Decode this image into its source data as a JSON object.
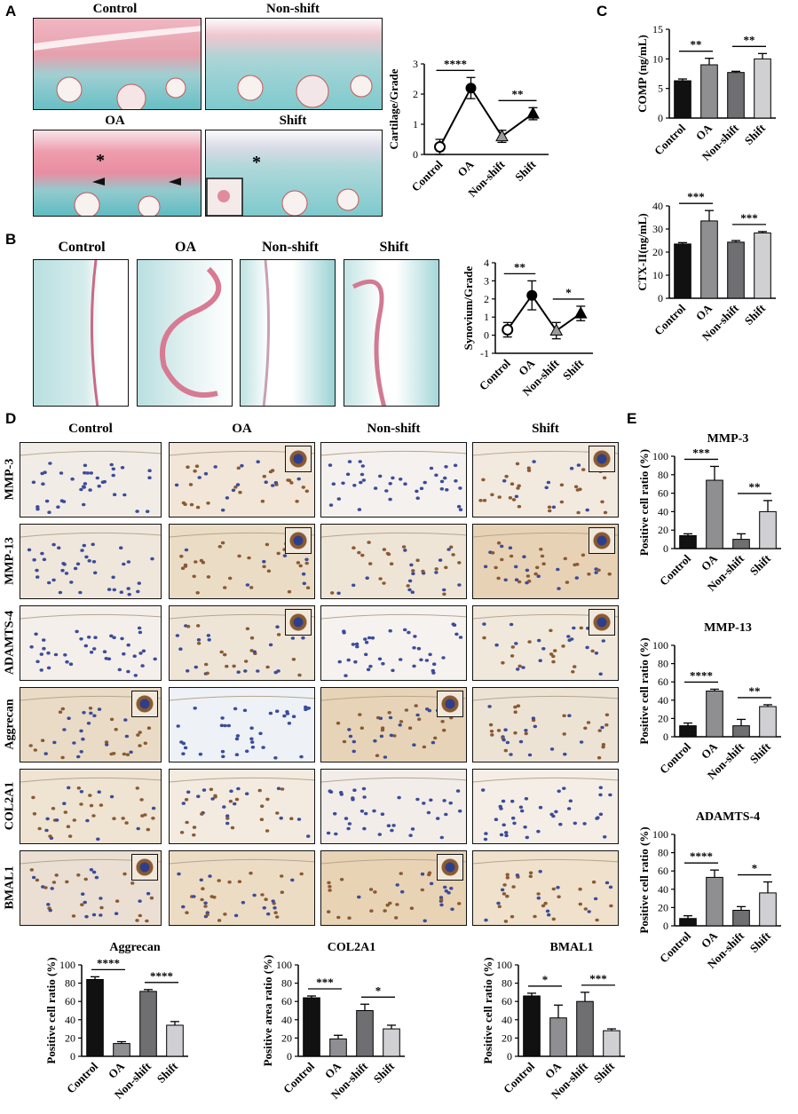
{
  "panel_letters": {
    "A": "A",
    "B": "B",
    "C": "C",
    "D": "D",
    "E": "E"
  },
  "panel_a": {
    "labels": [
      "Control",
      "Non-shift",
      "OA",
      "Shift"
    ],
    "star": "*"
  },
  "panel_b": {
    "labels": [
      "Control",
      "OA",
      "Non-shift",
      "Shift"
    ]
  },
  "panel_d": {
    "col_labels": [
      "Control",
      "OA",
      "Non-shift",
      "Shift"
    ],
    "row_labels": [
      "MMP-3",
      "MMP-13",
      "ADAMTS-4",
      "Aggrecan",
      "COL2A1",
      "BMAL1"
    ]
  },
  "colors": {
    "safranin_red": "#e79aa8",
    "fast_green": "#6fc3c6",
    "ihc_bg": "#f3ece3",
    "ihc_brown": "#a06a3c",
    "hema_blue": "#3a4fa0",
    "bar_black": "#111111",
    "bar_gray1": "#8f8f92",
    "bar_gray2": "#6f6f72",
    "bar_gray3": "#d0d0d2"
  },
  "chart_data": [
    {
      "id": "A-cartilage",
      "type": "line",
      "ylabel": "Cartilage/Grade",
      "categories": [
        "Control",
        "OA",
        "Non-shift",
        "Shift"
      ],
      "values": [
        0.25,
        2.2,
        0.6,
        1.35
      ],
      "errors": [
        0.25,
        0.35,
        0.2,
        0.2
      ],
      "markers": [
        "circle-open",
        "circle",
        "triangle-gray",
        "triangle"
      ],
      "ylim": [
        0,
        3
      ],
      "yticks": [
        0,
        1,
        2,
        3
      ],
      "significance": [
        {
          "from": 0,
          "to": 1,
          "label": "****"
        },
        {
          "from": 2,
          "to": 3,
          "label": "**"
        }
      ]
    },
    {
      "id": "B-synovium",
      "type": "line",
      "ylabel": "Synovium/Grade",
      "categories": [
        "Control",
        "OA",
        "Non-shift",
        "Shift"
      ],
      "values": [
        0.3,
        2.2,
        0.25,
        1.2
      ],
      "errors": [
        0.4,
        0.8,
        0.45,
        0.4
      ],
      "markers": [
        "circle-open",
        "circle",
        "triangle-gray",
        "triangle"
      ],
      "ylim": [
        -1,
        4
      ],
      "yticks": [
        -1,
        0,
        1,
        2,
        3,
        4
      ],
      "significance": [
        {
          "from": 0,
          "to": 1,
          "label": "**"
        },
        {
          "from": 2,
          "to": 3,
          "label": "*"
        }
      ]
    },
    {
      "id": "C-comp",
      "type": "bar",
      "ylabel": "COMP (ng/mL)",
      "categories": [
        "Control",
        "OA",
        "Non-shift",
        "Shift"
      ],
      "values": [
        6.3,
        9.0,
        7.7,
        10.0
      ],
      "errors": [
        0.3,
        1.1,
        0.2,
        0.9
      ],
      "ylim": [
        0,
        15
      ],
      "yticks": [
        0,
        5,
        10,
        15
      ],
      "significance": [
        {
          "from": 0,
          "to": 1,
          "label": "**"
        },
        {
          "from": 2,
          "to": 3,
          "label": "**"
        }
      ]
    },
    {
      "id": "C-ctx",
      "type": "bar",
      "ylabel": "CTX-II(ng/mL)",
      "categories": [
        "Control",
        "OA",
        "Non-shift",
        "Shift"
      ],
      "values": [
        23.5,
        33.5,
        24.3,
        28.3
      ],
      "errors": [
        0.6,
        4.5,
        0.7,
        0.6
      ],
      "ylim": [
        0,
        40
      ],
      "yticks": [
        0,
        10,
        20,
        30,
        40
      ],
      "significance": [
        {
          "from": 0,
          "to": 1,
          "label": "***"
        },
        {
          "from": 2,
          "to": 3,
          "label": "***"
        }
      ]
    },
    {
      "id": "E-mmp3",
      "type": "bar",
      "title": "MMP-3",
      "ylabel": "Positive cell ratio (%)",
      "categories": [
        "Control",
        "OA",
        "Non-shift",
        "Shift"
      ],
      "values": [
        14,
        74,
        10,
        40
      ],
      "errors": [
        2,
        15,
        6,
        12
      ],
      "ylim": [
        0,
        100
      ],
      "yticks": [
        0,
        20,
        40,
        60,
        80,
        100
      ],
      "significance": [
        {
          "from": 0,
          "to": 1,
          "label": "***"
        },
        {
          "from": 2,
          "to": 3,
          "label": "**"
        }
      ]
    },
    {
      "id": "E-mmp13",
      "type": "bar",
      "title": "MMP-13",
      "ylabel": "Positive cell ratio (%)",
      "categories": [
        "Control",
        "OA",
        "Non-shift",
        "Shift"
      ],
      "values": [
        12,
        50,
        12,
        33
      ],
      "errors": [
        3,
        2,
        7,
        2
      ],
      "ylim": [
        0,
        100
      ],
      "yticks": [
        0,
        20,
        40,
        60,
        80,
        100
      ],
      "significance": [
        {
          "from": 0,
          "to": 1,
          "label": "****"
        },
        {
          "from": 2,
          "to": 3,
          "label": "**"
        }
      ]
    },
    {
      "id": "E-adamts4",
      "type": "bar",
      "title": "ADAMTS-4",
      "ylabel": "Positive cell ratio (%)",
      "categories": [
        "Control",
        "OA",
        "Non-shift",
        "Shift"
      ],
      "values": [
        8,
        53,
        17,
        36
      ],
      "errors": [
        3,
        8,
        4,
        12
      ],
      "ylim": [
        0,
        100
      ],
      "yticks": [
        0,
        20,
        40,
        60,
        80,
        100
      ],
      "significance": [
        {
          "from": 0,
          "to": 1,
          "label": "****"
        },
        {
          "from": 2,
          "to": 3,
          "label": "*"
        }
      ]
    },
    {
      "id": "D-aggrecan",
      "type": "bar",
      "title": "Aggrecan",
      "ylabel": "Positive cell ratio (%)",
      "categories": [
        "Control",
        "OA",
        "Non-shift",
        "Shift"
      ],
      "values": [
        84,
        14,
        71,
        34
      ],
      "errors": [
        3,
        2,
        2,
        4
      ],
      "ylim": [
        0,
        100
      ],
      "yticks": [
        0,
        20,
        40,
        60,
        80,
        100
      ],
      "significance": [
        {
          "from": 0,
          "to": 1,
          "label": "****"
        },
        {
          "from": 2,
          "to": 3,
          "label": "****"
        }
      ]
    },
    {
      "id": "D-col2a1",
      "type": "bar",
      "title": "COL2A1",
      "ylabel": "Positive area ratio (%)",
      "categories": [
        "Control",
        "OA",
        "Non-shift",
        "Shift"
      ],
      "values": [
        64,
        19,
        50,
        30
      ],
      "errors": [
        2,
        4,
        7,
        4
      ],
      "ylim": [
        0,
        100
      ],
      "yticks": [
        0,
        20,
        40,
        60,
        80,
        100
      ],
      "significance": [
        {
          "from": 0,
          "to": 1,
          "label": "***"
        },
        {
          "from": 2,
          "to": 3,
          "label": "*"
        }
      ]
    },
    {
      "id": "D-bmal1",
      "type": "bar",
      "title": "BMAL1",
      "ylabel": "Positive cell ratio (%)",
      "categories": [
        "Control",
        "OA",
        "Non-shift",
        "Shift"
      ],
      "values": [
        66,
        42,
        60,
        28
      ],
      "errors": [
        3,
        14,
        10,
        2
      ],
      "ylim": [
        0,
        100
      ],
      "yticks": [
        0,
        20,
        40,
        60,
        80,
        100
      ],
      "significance": [
        {
          "from": 0,
          "to": 1,
          "label": "*"
        },
        {
          "from": 2,
          "to": 3,
          "label": "***"
        }
      ]
    }
  ]
}
